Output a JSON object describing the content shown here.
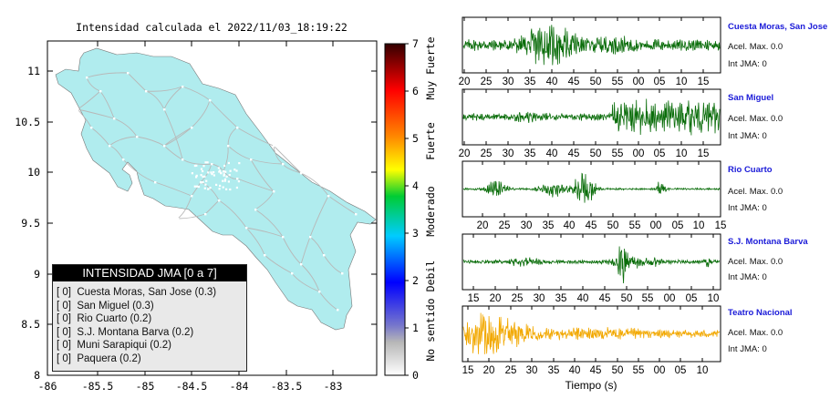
{
  "title": "Intensidad calculada el 2022/11/03_18:19:22",
  "map": {
    "lon_ticks": [
      "-86",
      "-85.5",
      "-85",
      "-84.5",
      "-84",
      "-83.5",
      "-83"
    ],
    "lat_ticks": [
      "8",
      "8.5",
      "9",
      "9.5",
      "10",
      "10.5",
      "11"
    ],
    "land_color": "#b0ecee",
    "road_color": "#b8b8b8"
  },
  "legend": {
    "title": "INTENSIDAD JMA [0 a 7]",
    "items": [
      {
        "label": "[ 0]  Cuesta Moras, San Jose (0.3)"
      },
      {
        "label": "[ 0]  San Miguel (0.3)"
      },
      {
        "label": "[ 0]  Rio Cuarto (0.2)"
      },
      {
        "label": "[ 0]  S.J. Montana Barva (0.2)"
      },
      {
        "label": "[ 0]  Muni Sarapiqui (0.2)"
      },
      {
        "label": "[ 0]  Paquera (0.2)"
      }
    ]
  },
  "colorbar": {
    "ticks": [
      "0",
      "1",
      "2",
      "3",
      "4",
      "5",
      "6",
      "7"
    ],
    "labels": [
      "No sentido",
      "Debil",
      "Moderado",
      "Fuerte",
      "Muy Fuerte"
    ]
  },
  "waveforms": {
    "xlabel": "Tiempo (s)",
    "stations": [
      {
        "name": "Cuesta Moras, San Jose",
        "accel": "Acel. Max. 0.0",
        "int": "Int JMA: 0",
        "color": "#0a6d0a",
        "ticks": [
          "20",
          "25",
          "30",
          "35",
          "40",
          "45",
          "50",
          "55",
          "00",
          "05",
          "10",
          "15"
        ]
      },
      {
        "name": "San Miguel",
        "accel": "Acel. Max. 0.0",
        "int": "Int JMA: 0",
        "color": "#0a6d0a",
        "ticks": [
          "20",
          "25",
          "30",
          "35",
          "40",
          "45",
          "50",
          "55",
          "00",
          "05",
          "10",
          "15"
        ]
      },
      {
        "name": "Rio Cuarto",
        "accel": "Acel. Max. 0.0",
        "int": "Int JMA: 0",
        "color": "#0a6d0a",
        "ticks": [
          "20",
          "25",
          "30",
          "35",
          "40",
          "45",
          "50",
          "55",
          "00",
          "05",
          "10",
          "15"
        ]
      },
      {
        "name": "S.J. Montana Barva",
        "accel": "Acel. Max. 0.0",
        "int": "Int JMA: 0",
        "color": "#0a6d0a",
        "ticks": [
          "15",
          "20",
          "25",
          "30",
          "35",
          "40",
          "45",
          "50",
          "55",
          "00",
          "05",
          "10"
        ]
      },
      {
        "name": "Teatro Nacional",
        "accel": "Acel. Max. 0.0",
        "int": "Int JMA: 0",
        "color": "#f2a800",
        "ticks": [
          "15",
          "20",
          "25",
          "30",
          "35",
          "40",
          "45",
          "50",
          "55",
          "00",
          "05",
          "10"
        ]
      }
    ]
  },
  "chart_data": [
    {
      "type": "scatter",
      "title": "Intensidad calculada el 2022/11/03_18:19:22",
      "xlim": [
        -86,
        -82.6
      ],
      "ylim": [
        8,
        11.3
      ],
      "x_ticks": [
        -86,
        -85.5,
        -85,
        -84.5,
        -84,
        -83.5,
        -83
      ],
      "y_ticks": [
        8,
        8.5,
        9,
        9.5,
        10,
        10.5,
        11
      ],
      "colorbar": {
        "range": [
          0,
          7
        ],
        "labels": [
          "No sentido",
          "Debil",
          "Moderado",
          "Fuerte",
          "Muy Fuerte"
        ]
      },
      "stations": [
        {
          "name": "Cuesta Moras, San Jose",
          "jma": 0,
          "value": 0.3
        },
        {
          "name": "San Miguel",
          "jma": 0,
          "value": 0.3
        },
        {
          "name": "Rio Cuarto",
          "jma": 0,
          "value": 0.2
        },
        {
          "name": "S.J. Montana Barva",
          "jma": 0,
          "value": 0.2
        },
        {
          "name": "Muni Sarapiqui",
          "jma": 0,
          "value": 0.2
        },
        {
          "name": "Paquera",
          "jma": 0,
          "value": 0.2
        }
      ]
    },
    {
      "type": "line",
      "xlabel": "Tiempo (s)",
      "series": [
        {
          "name": "Cuesta Moras, San Jose",
          "acel_max": 0.0,
          "int_jma": 0
        },
        {
          "name": "San Miguel",
          "acel_max": 0.0,
          "int_jma": 0
        },
        {
          "name": "Rio Cuarto",
          "acel_max": 0.0,
          "int_jma": 0
        },
        {
          "name": "S.J. Montana Barva",
          "acel_max": 0.0,
          "int_jma": 0
        },
        {
          "name": "Teatro Nacional",
          "acel_max": 0.0,
          "int_jma": 0
        }
      ]
    }
  ]
}
